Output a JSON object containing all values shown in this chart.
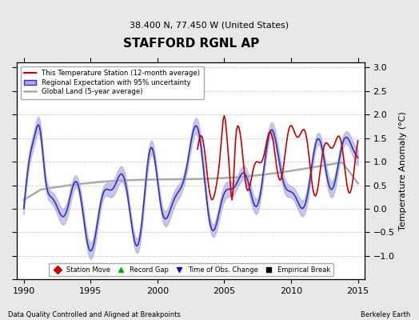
{
  "title": "STAFFORD RGNL AP",
  "subtitle": "38.400 N, 77.450 W (United States)",
  "ylabel": "Temperature Anomaly (°C)",
  "xlabel_left": "Data Quality Controlled and Aligned at Breakpoints",
  "xlabel_right": "Berkeley Earth",
  "xlim": [
    1989.5,
    2015.5
  ],
  "ylim": [
    -1.5,
    3.1
  ],
  "yticks_right": [
    -1.0,
    -0.5,
    0.0,
    0.5,
    1.0,
    1.5,
    2.0,
    2.5,
    3.0
  ],
  "yticks_left_minor": [
    -1.5,
    -1.0,
    -0.5,
    0.0,
    0.5,
    1.0,
    1.5,
    2.0,
    2.5,
    3.0
  ],
  "xticks": [
    1990,
    1995,
    2000,
    2005,
    2010,
    2015
  ],
  "background_color": "#e8e8e8",
  "plot_bg_color": "#ffffff",
  "grid_color": "#cccccc",
  "red_color": "#cc0000",
  "blue_color": "#3333bb",
  "blue_fill": "#aaaadd",
  "gray_color": "#aaaaaa",
  "legend_labels": [
    "This Temperature Station (12-month average)",
    "Regional Expectation with 95% uncertainty",
    "Global Land (5-year average)"
  ],
  "bottom_legend": [
    {
      "label": "Station Move",
      "color": "#cc0000",
      "marker": "D"
    },
    {
      "label": "Record Gap",
      "color": "#00aa00",
      "marker": "^"
    },
    {
      "label": "Time of Obs. Change",
      "color": "#0000cc",
      "marker": "v"
    },
    {
      "label": "Empirical Break",
      "color": "#000000",
      "marker": "s"
    }
  ]
}
